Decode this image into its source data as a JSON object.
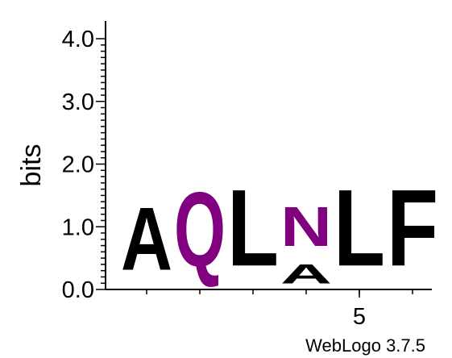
{
  "chart_data": {
    "type": "sequence_logo",
    "ylabel": "bits",
    "ylim": [
      0,
      4.0
    ],
    "yticks": [
      "0.0",
      "1.0",
      "2.0",
      "3.0",
      "4.0"
    ],
    "xticks": [
      {
        "position": 5,
        "label": "5"
      }
    ],
    "colors": {
      "Q": "#800080",
      "N": "#800080",
      "A": "#000000",
      "L": "#000000",
      "F": "#000000"
    },
    "positions": [
      {
        "position": 1,
        "letters": [
          {
            "letter": "A",
            "bits": 1.6
          }
        ]
      },
      {
        "position": 2,
        "letters": [
          {
            "letter": "Q",
            "bits": 1.9
          }
        ]
      },
      {
        "position": 3,
        "letters": [
          {
            "letter": "L",
            "bits": 1.95
          }
        ]
      },
      {
        "position": 4,
        "letters": [
          {
            "letter": "A",
            "bits": 0.5
          },
          {
            "letter": "N",
            "bits": 1.0
          }
        ]
      },
      {
        "position": 5,
        "letters": [
          {
            "letter": "L",
            "bits": 1.95
          }
        ]
      },
      {
        "position": 6,
        "letters": [
          {
            "letter": "F",
            "bits": 1.95
          }
        ]
      }
    ]
  },
  "credit": "WebLogo 3.7.5"
}
